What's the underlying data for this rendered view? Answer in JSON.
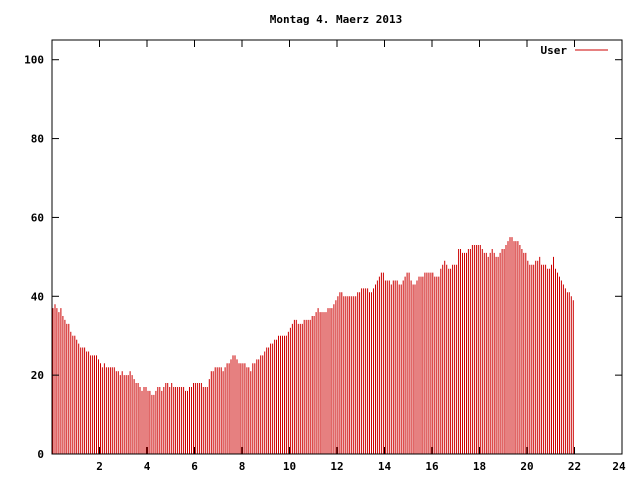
{
  "chart_data": {
    "type": "bar",
    "title": "Montag 4. Maerz 2013",
    "xlabel": "",
    "ylabel": "",
    "xlim": [
      0,
      24
    ],
    "ylim": [
      0,
      105
    ],
    "x_ticks": [
      2,
      4,
      6,
      8,
      10,
      12,
      14,
      16,
      18,
      20,
      22,
      24
    ],
    "y_ticks": [
      0,
      20,
      40,
      60,
      80,
      100
    ],
    "x_tick_labels": [
      "2",
      "4",
      "6",
      "8",
      "10",
      "12",
      "14",
      "16",
      "18",
      "20",
      "22",
      "24"
    ],
    "y_tick_labels": [
      "0",
      "20",
      "40",
      "60",
      "80",
      "100"
    ],
    "grid": false,
    "legend_position": "top-right",
    "color": "#cc0000",
    "interval_hours": 0.0833,
    "series": [
      {
        "name": "User",
        "values": [
          37,
          38,
          37,
          36,
          37,
          35,
          34,
          33,
          33,
          31,
          30,
          30,
          29,
          28,
          27,
          27,
          27,
          26,
          26,
          25,
          25,
          25,
          25,
          24,
          23,
          22,
          23,
          22,
          22,
          22,
          22,
          22,
          21,
          21,
          20,
          21,
          20,
          20,
          20,
          21,
          20,
          19,
          18,
          18,
          17,
          16,
          17,
          17,
          16,
          16,
          15,
          15,
          16,
          17,
          17,
          16,
          17,
          18,
          18,
          17,
          18,
          17,
          17,
          17,
          17,
          17,
          17,
          16,
          16,
          17,
          17,
          18,
          18,
          18,
          18,
          18,
          17,
          17,
          17,
          19,
          21,
          21,
          22,
          22,
          22,
          22,
          21,
          22,
          23,
          23,
          24,
          25,
          25,
          24,
          23,
          23,
          23,
          23,
          22,
          22,
          21,
          23,
          23,
          24,
          24,
          25,
          25,
          26,
          27,
          27,
          28,
          28,
          29,
          29,
          30,
          30,
          30,
          30,
          30,
          31,
          32,
          33,
          34,
          34,
          33,
          33,
          33,
          34,
          34,
          34,
          34,
          35,
          35,
          36,
          37,
          36,
          36,
          36,
          36,
          37,
          37,
          37,
          38,
          39,
          40,
          41,
          41,
          40,
          40,
          40,
          40,
          40,
          40,
          40,
          41,
          41,
          42,
          42,
          42,
          42,
          41,
          41,
          42,
          43,
          44,
          45,
          46,
          46,
          44,
          44,
          44,
          43,
          44,
          44,
          44,
          43,
          43,
          44,
          45,
          46,
          46,
          44,
          43,
          43,
          44,
          45,
          45,
          45,
          46,
          46,
          46,
          46,
          46,
          45,
          45,
          45,
          47,
          48,
          49,
          48,
          47,
          47,
          48,
          48,
          48,
          52,
          52,
          51,
          51,
          51,
          52,
          52,
          53,
          53,
          53,
          53,
          53,
          52,
          51,
          51,
          50,
          51,
          52,
          51,
          50,
          50,
          51,
          52,
          52,
          53,
          54,
          55,
          55,
          54,
          54,
          54,
          53,
          52,
          51,
          51,
          49,
          48,
          48,
          48,
          49,
          49,
          50,
          48,
          48,
          48,
          47,
          47,
          48,
          50,
          47,
          46,
          45,
          44,
          43,
          42,
          41,
          41,
          40,
          39
        ]
      }
    ]
  }
}
